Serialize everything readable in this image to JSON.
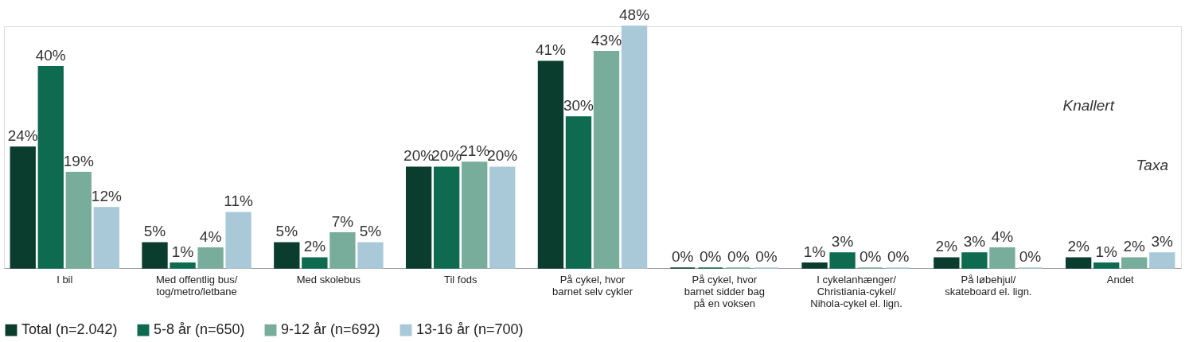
{
  "chart_data": {
    "type": "bar",
    "categories": [
      "I bil",
      "Med offentlig bus/\ntog/metro/letbane",
      "Med skolebus",
      "Til fods",
      "På cykel, hvor\nbarnet selv cykler",
      "På cykel, hvor\nbarnet sidder bag\npå en voksen",
      "I cykelanhænger/\nChristiania-cykel/\nNihola-cykel el. lign.",
      "På løbehjul/\nskateboard el. lign.",
      "Andet"
    ],
    "series": [
      {
        "name": "Total (n=2.042)",
        "color": "#0b3d2e",
        "values": [
          24,
          5,
          5,
          20,
          41,
          0,
          1,
          2,
          2
        ],
        "value_labels": [
          "24%",
          "5%",
          "5%",
          "20%",
          "41%",
          "0%",
          "1%",
          "2%",
          "2%"
        ]
      },
      {
        "name": "5-8 år (n=650)",
        "color": "#0e6b50",
        "values": [
          40,
          1,
          2,
          20,
          30,
          0,
          3,
          3,
          1
        ],
        "value_labels": [
          "40%",
          "1%",
          "2%",
          "20%",
          "30%",
          "0%",
          "3%",
          "3%",
          "1%"
        ]
      },
      {
        "name": "9-12 år (n=692)",
        "color": "#79ad9b",
        "values": [
          19,
          4,
          7,
          21,
          43,
          0,
          0,
          4,
          2
        ],
        "value_labels": [
          "19%",
          "4%",
          "7%",
          "21%",
          "43%",
          "0%",
          "0%",
          "4%",
          "2%"
        ]
      },
      {
        "name": "13-16 år (n=700)",
        "color": "#a9c9d9",
        "values": [
          12,
          11,
          5,
          20,
          48,
          0,
          0,
          0,
          3
        ],
        "value_labels": [
          "12%",
          "11%",
          "5%",
          "20%",
          "48%",
          "0%",
          "0%",
          "0%",
          "3%"
        ]
      }
    ],
    "legend": "bottom",
    "annotations": [
      "Knallert",
      "Taxa"
    ]
  }
}
